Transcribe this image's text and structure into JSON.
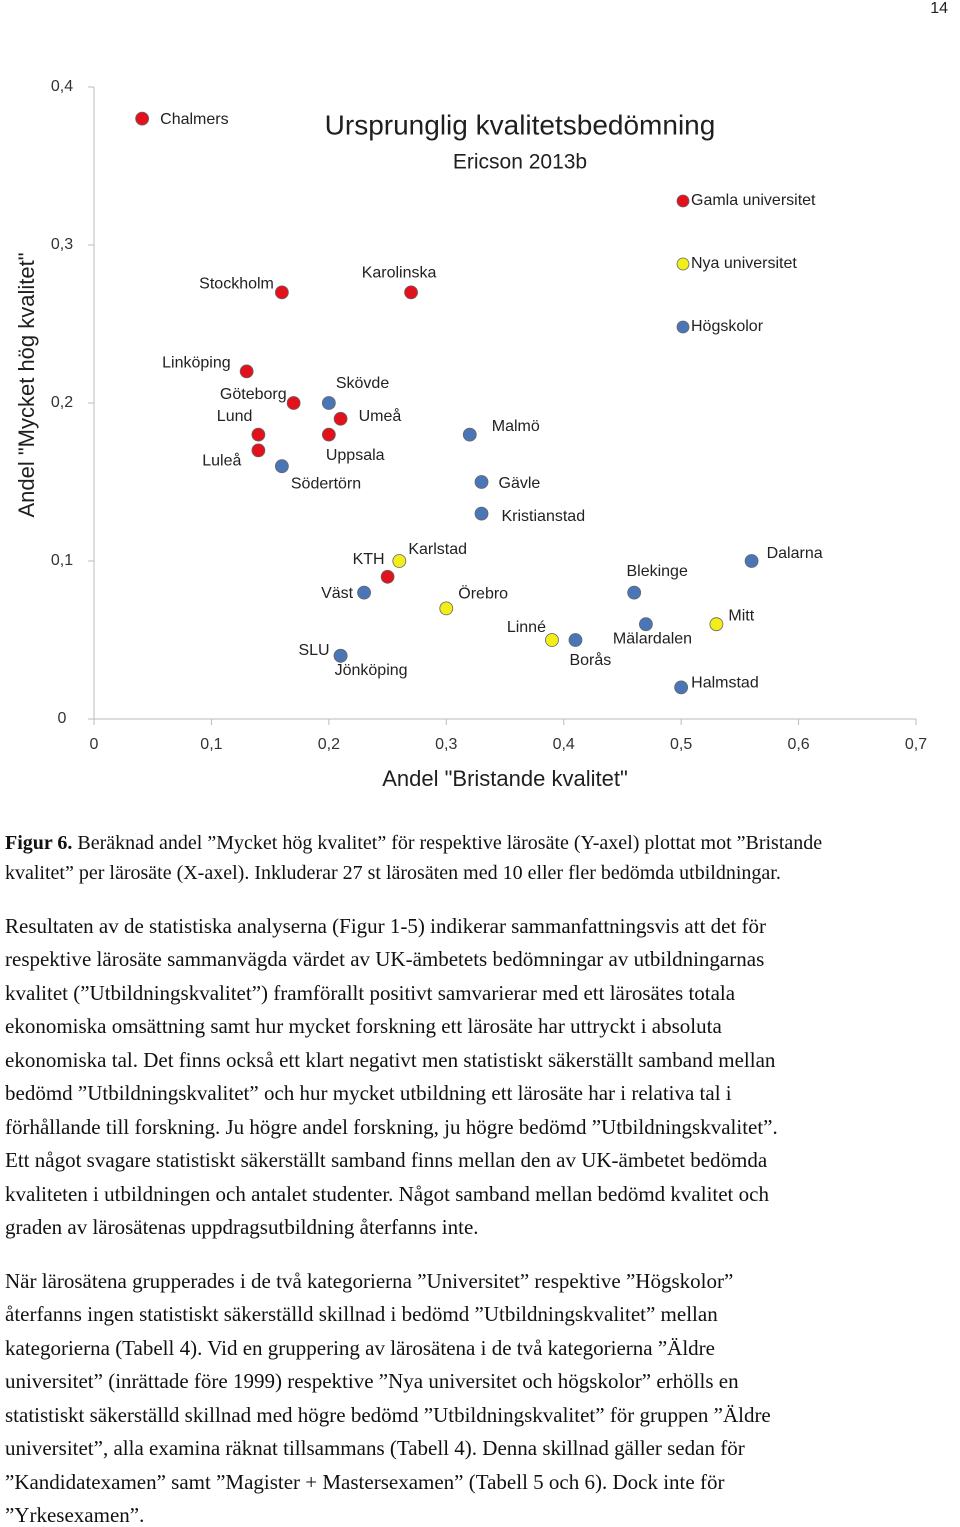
{
  "page_number": "14",
  "chart_data": {
    "type": "scatter",
    "title": "Ursprunglig kvalitetsbedömning",
    "subtitle": "Ericson 2013b",
    "xlabel": "Andel \"Bristande kvalitet\"",
    "ylabel": "Andel \"Mycket hög kvalitet\"",
    "xlim": [
      0,
      0.7
    ],
    "ylim": [
      0,
      0.4
    ],
    "xticks": [
      0,
      {
        "value": 0.1,
        "label": "0,1"
      },
      {
        "value": 0.2,
        "label": "0,2"
      },
      {
        "value": 0.3,
        "label": "0,3"
      },
      {
        "value": 0.4,
        "label": "0,4"
      },
      {
        "value": 0.5,
        "label": "0,5"
      },
      {
        "value": 0.6,
        "label": "0,6"
      },
      {
        "value": 0.7,
        "label": "0,7"
      }
    ],
    "yticks": [
      0,
      {
        "value": 0.1,
        "label": "0,1"
      },
      {
        "value": 0.2,
        "label": "0,2"
      },
      {
        "value": 0.3,
        "label": "0,3"
      },
      {
        "value": 0.4,
        "label": "0,4"
      }
    ],
    "grid": false,
    "legend": "upper right",
    "series": [
      {
        "name": "Gamla universitet",
        "color": "#e3111b",
        "labels": [
          "Chalmers",
          "Stockholm",
          "Karolinska",
          "Linköping",
          "Göteborg",
          "Lund",
          "Luleå",
          "Umeå",
          "Uppsala",
          "KTH",
          "SLU"
        ],
        "x": [
          0.041,
          0.16,
          0.27,
          0.13,
          0.17,
          0.14,
          0.14,
          0.21,
          0.2,
          0.25,
          0.21
        ],
        "y": [
          0.38,
          0.27,
          0.27,
          0.22,
          0.2,
          0.18,
          0.17,
          0.19,
          0.18,
          0.09,
          0.04
        ]
      },
      {
        "name": "Nya universitet",
        "color": "#f2ee1a",
        "labels": [
          "Karlstad",
          "Örebro",
          "Linné",
          "Mitt"
        ],
        "x": [
          0.26,
          0.3,
          0.39,
          0.53
        ],
        "y": [
          0.1,
          0.07,
          0.05,
          0.06
        ]
      },
      {
        "name": "Högskolor",
        "color": "#4a76b8",
        "labels": [
          "Skövde",
          "Södertörn",
          "Malmö",
          "Gävle",
          "Kristianstad",
          "Väst",
          "Jönköping",
          "Blekinge",
          "Borås",
          "Mälardalen",
          "Dalarna",
          "Halmstad"
        ],
        "x": [
          0.2,
          0.16,
          0.32,
          0.33,
          0.33,
          0.23,
          0.21,
          0.46,
          0.41,
          0.47,
          0.56,
          0.5
        ],
        "y": [
          0.2,
          0.16,
          0.18,
          0.15,
          0.13,
          0.08,
          0.04,
          0.08,
          0.05,
          0.06,
          0.1,
          0.02
        ]
      }
    ]
  },
  "caption": {
    "label": "Figur 6.",
    "lines": [
      "Beräknad andel ”Mycket hög kvalitet” för respektive lärosäte (Y-axel) plottat mot ”Bristande",
      "kvalitet” per lärosäte (X-axel). Inkluderar 27 st lärosäten med 10 eller fler bedömda utbildningar."
    ]
  },
  "paragraphs": [
    [
      "Resultaten av de statistiska analyserna (Figur 1-5) indikerar sammanfattningsvis att det för",
      "respektive lärosäte sammanvägda värdet av UK-ämbetets bedömningar av utbildningarnas",
      "kvalitet (”Utbildningskvalitet”) framförallt positivt samvarierar med ett lärosätes totala",
      "ekonomiska omsättning samt hur mycket forskning ett lärosäte har uttryckt i absoluta",
      "ekonomiska tal. Det finns också ett klart negativt men statistiskt säkerställt samband mellan",
      "bedömd ”Utbildningskvalitet” och hur mycket utbildning ett lärosäte har i relativa tal i",
      "förhållande till forskning. Ju högre andel forskning, ju högre bedömd ”Utbildningskvalitet”.",
      "Ett något svagare statistiskt säkerställt samband finns mellan den av UK-ämbetet bedömda",
      "kvaliteten i utbildningen och antalet studenter. Något samband mellan bedömd kvalitet och",
      "graden av lärosätenas uppdragsutbildning återfanns inte."
    ],
    [
      "När lärosätena grupperades i de två kategorierna ”Universitet” respektive ”Högskolor”",
      "återfanns ingen statistiskt säkerställd skillnad i bedömd ”Utbildningskvalitet” mellan",
      "kategorierna (Tabell 4). Vid en gruppering av lärosätena i de två kategorierna ”Äldre",
      "universitet” (inrättade före 1999) respektive ”Nya universitet och högskolor” erhölls en",
      "statistiskt säkerställd skillnad med högre bedömd ”Utbildningskvalitet” för gruppen ”Äldre",
      "universitet”, alla examina räknat tillsammans (Tabell 4). Denna skillnad gäller sedan för",
      "”Kandidatexamen” samt ”Magister + Mastersexamen” (Tabell 5 och 6). Dock inte för",
      "”Yrkesexamen”."
    ]
  ]
}
